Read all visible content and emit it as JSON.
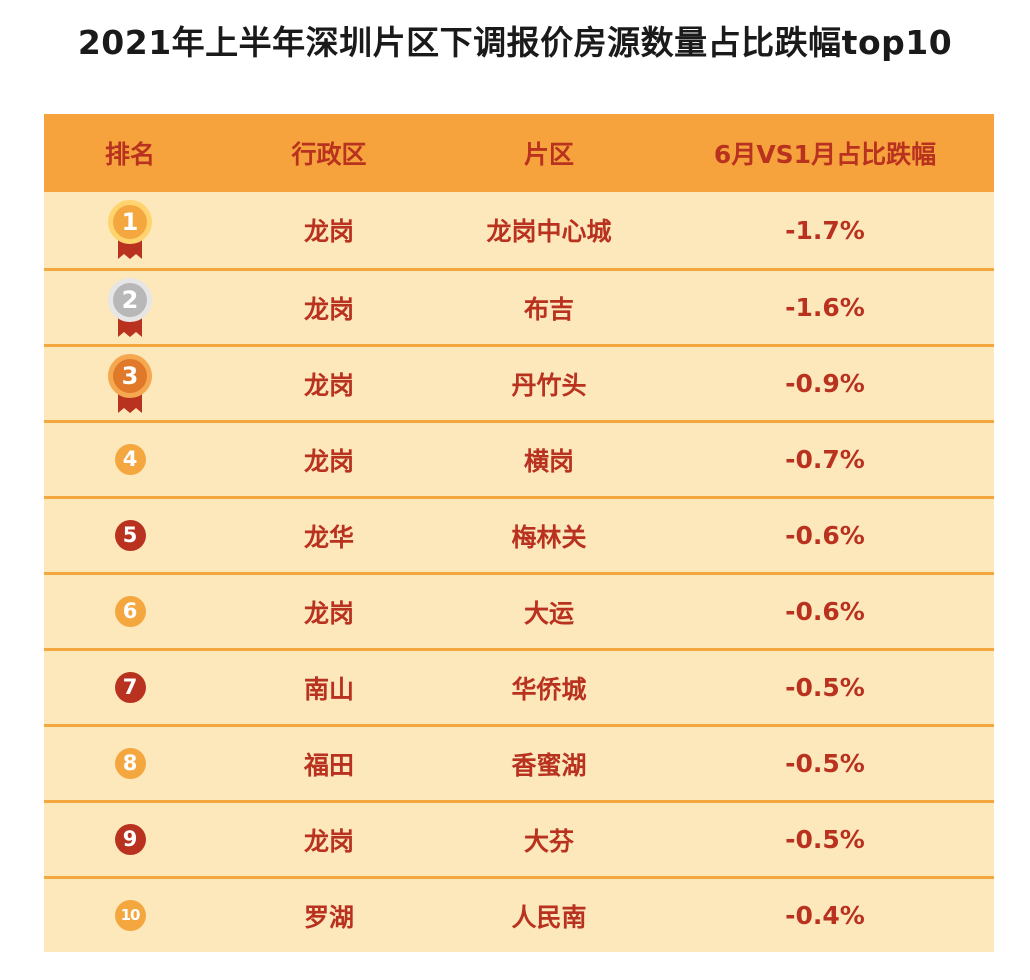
{
  "chart_data": {
    "type": "table",
    "title": "2021年上半年深圳片区下调报价房源数量占比跌幅top10",
    "columns": [
      "排名",
      "行政区",
      "片区",
      "6月VS1月占比跌幅"
    ],
    "rows": [
      {
        "rank": "1",
        "district": "龙岗",
        "area": "龙岗中心城",
        "decline": "-1.7%"
      },
      {
        "rank": "2",
        "district": "龙岗",
        "area": "布吉",
        "decline": "-1.6%"
      },
      {
        "rank": "3",
        "district": "龙岗",
        "area": "丹竹头",
        "decline": "-0.9%"
      },
      {
        "rank": "4",
        "district": "龙岗",
        "area": "横岗",
        "decline": "-0.7%"
      },
      {
        "rank": "5",
        "district": "龙华",
        "area": "梅林关",
        "decline": "-0.6%"
      },
      {
        "rank": "6",
        "district": "龙岗",
        "area": "大运",
        "decline": "-0.6%"
      },
      {
        "rank": "7",
        "district": "南山",
        "area": "华侨城",
        "decline": "-0.5%"
      },
      {
        "rank": "8",
        "district": "福田",
        "area": "香蜜湖",
        "decline": "-0.5%"
      },
      {
        "rank": "9",
        "district": "龙岗",
        "area": "大芬",
        "decline": "-0.5%"
      },
      {
        "rank": "10",
        "district": "罗湖",
        "area": "人民南",
        "decline": "-0.4%"
      }
    ]
  },
  "colors": {
    "header_bg": "#f6a33d",
    "row_bg": "#fde8bc",
    "text_red": "#b8321f",
    "badge_orange": "#f5a73f",
    "badge_red": "#b8321f",
    "medal_gold": "#f5a73f",
    "medal_silver": "#b8b8b8",
    "medal_bronze": "#e07a2a"
  },
  "icons": {
    "medal_1": "gold-medal-icon",
    "medal_2": "silver-medal-icon",
    "medal_3": "bronze-medal-icon",
    "rank_badge": "circled-number-icon"
  }
}
